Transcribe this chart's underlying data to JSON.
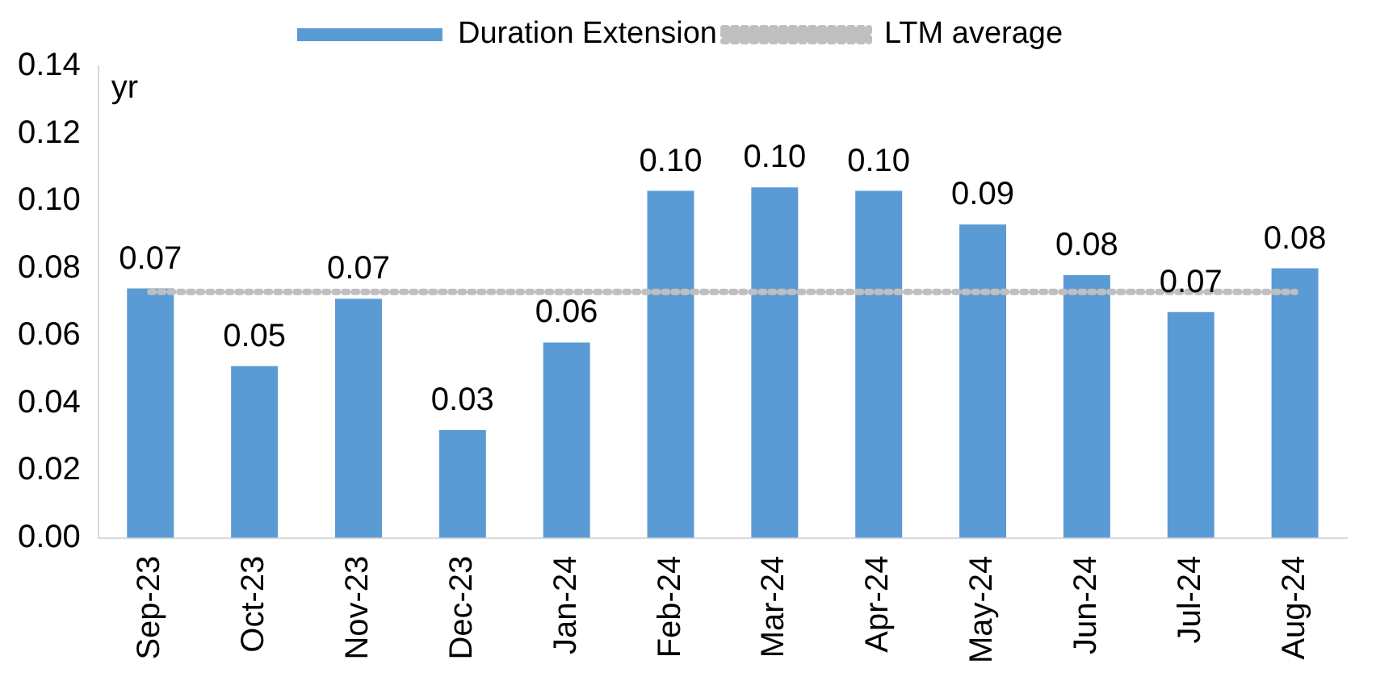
{
  "chart_data": {
    "type": "bar",
    "ylabel": "yr",
    "categories": [
      "Sep-23",
      "Oct-23",
      "Nov-23",
      "Dec-23",
      "Jan-24",
      "Feb-24",
      "Mar-24",
      "Apr-24",
      "May-24",
      "Jun-24",
      "Jul-24",
      "Aug-24"
    ],
    "series": [
      {
        "name": "Duration Extension",
        "color": "#5b9bd5",
        "values": [
          0.074,
          0.051,
          0.071,
          0.032,
          0.058,
          0.103,
          0.104,
          0.103,
          0.093,
          0.078,
          0.067,
          0.08
        ],
        "value_labels": [
          "0.07",
          "0.05",
          "0.07",
          "0.03",
          "0.06",
          "0.10",
          "0.10",
          "0.10",
          "0.09",
          "0.08",
          "0.07",
          "0.08"
        ]
      },
      {
        "name": "LTM average",
        "type": "line",
        "color": "#bfbfbf",
        "line_style": "dotted",
        "values": [
          0.073,
          0.073,
          0.073,
          0.073,
          0.073,
          0.073,
          0.073,
          0.073,
          0.073,
          0.073,
          0.073,
          0.073
        ]
      }
    ],
    "ylim": [
      0,
      0.14
    ],
    "yticks": [
      {
        "value": 0,
        "label": "0.00"
      },
      0.02,
      0.04,
      0.06,
      0.08,
      {
        "value": 0.1,
        "label": "0.10"
      },
      0.12,
      0.14
    ],
    "legend": "top",
    "grid": false
  }
}
